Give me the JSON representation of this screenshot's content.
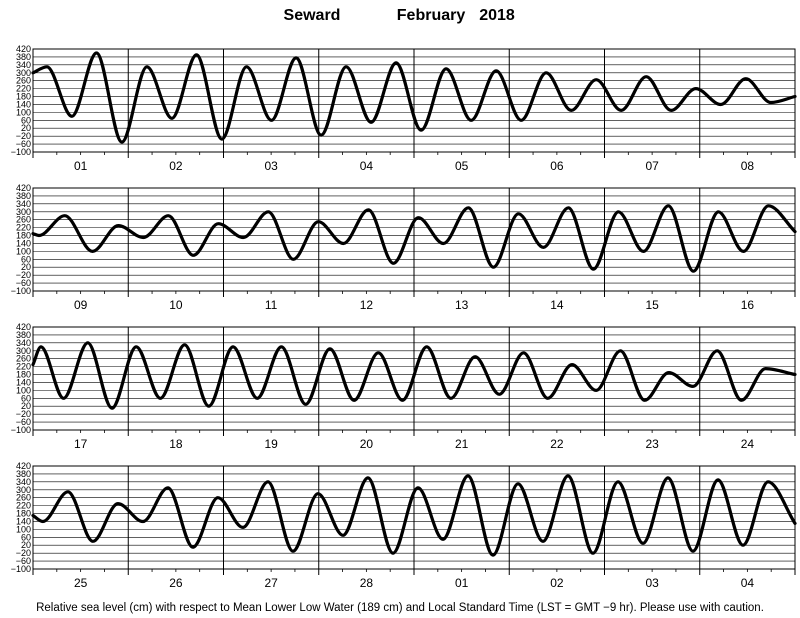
{
  "title": {
    "station": "Seward",
    "month": "February",
    "year": "2018"
  },
  "footer": "Relative sea level (cm) with respect to Mean Lower Low Water (189 cm) and Local Standard Time (LST = GMT −9 hr). Please use with caution.",
  "chart_data": {
    "type": "line",
    "title": "Seward February 2018",
    "ylim": [
      -100,
      420
    ],
    "y_ticks": [
      420,
      380,
      340,
      300,
      260,
      220,
      180,
      140,
      100,
      60,
      20,
      -20,
      -60,
      -100
    ],
    "grid": true,
    "panels": [
      {
        "days": [
          "01",
          "02",
          "03",
          "04",
          "05",
          "06",
          "07",
          "08"
        ],
        "series": [
          {
            "x": [
              0,
              3.5,
              9.8,
              16.0,
              22.4,
              28.7,
              35.0,
              41.2,
              47.6,
              53.8,
              60.1,
              66.3,
              72.6,
              78.9,
              85.2,
              91.5,
              97.8,
              104.1,
              110.4,
              116.7,
              123.0,
              129.3,
              135.6,
              141.9,
              148.2,
              154.5,
              160.8,
              167.0,
              173.3,
              179.6,
              185.9,
              192.0
            ],
            "y": [
              300,
              330,
              80,
              400,
              -50,
              330,
              70,
              390,
              -35,
              330,
              60,
              375,
              -15,
              330,
              50,
              350,
              10,
              320,
              60,
              310,
              60,
              300,
              110,
              265,
              110,
              280,
              110,
              220,
              140,
              270,
              150,
              180
            ]
          }
        ]
      },
      {
        "days": [
          "09",
          "10",
          "11",
          "12",
          "13",
          "14",
          "15",
          "16"
        ],
        "series": [
          {
            "x": [
              0,
              1.5,
              8.0,
              15.0,
              21.5,
              27.8,
              34.1,
              40.4,
              46.7,
              53.0,
              59.3,
              65.6,
              71.9,
              78.2,
              84.5,
              90.8,
              97.1,
              103.4,
              109.7,
              116.0,
              122.3,
              128.6,
              134.9,
              141.2,
              147.5,
              153.8,
              160.1,
              166.4,
              172.7,
              179.0,
              185.3,
              192.0
            ],
            "y": [
              190,
              180,
              280,
              100,
              230,
              170,
              280,
              80,
              240,
              170,
              300,
              60,
              250,
              140,
              310,
              40,
              270,
              140,
              320,
              20,
              290,
              120,
              320,
              10,
              300,
              100,
              330,
              0,
              300,
              100,
              330,
              200
            ]
          }
        ]
      },
      {
        "days": [
          "17",
          "18",
          "19",
          "20",
          "21",
          "22",
          "23",
          "24"
        ],
        "series": [
          {
            "x": [
              0,
              2.0,
              7.7,
              13.8,
              19.9,
              26.0,
              32.1,
              38.2,
              44.3,
              50.4,
              56.5,
              62.6,
              68.7,
              74.8,
              80.9,
              87.0,
              93.1,
              99.2,
              105.3,
              111.4,
              117.5,
              123.6,
              129.7,
              135.8,
              141.9,
              148.0,
              154.1,
              160.2,
              166.3,
              172.4,
              178.5,
              184.6,
              192.0
            ],
            "y": [
              230,
              320,
              60,
              340,
              10,
              320,
              60,
              330,
              20,
              320,
              60,
              320,
              30,
              310,
              50,
              290,
              50,
              320,
              60,
              270,
              80,
              290,
              60,
              230,
              100,
              300,
              50,
              190,
              120,
              300,
              50,
              210,
              180
            ]
          }
        ]
      },
      {
        "days": [
          "25",
          "26",
          "27",
          "28",
          "01",
          "02",
          "03",
          "04"
        ],
        "series": [
          {
            "x": [
              0,
              2.5,
              8.8,
              15.1,
              21.4,
              27.7,
              34.0,
              40.3,
              46.6,
              52.9,
              59.2,
              65.5,
              71.8,
              78.1,
              84.4,
              90.7,
              97.0,
              103.3,
              109.6,
              115.9,
              122.2,
              128.5,
              134.8,
              141.1,
              147.4,
              153.7,
              160.0,
              166.3,
              172.6,
              178.9,
              185.2,
              192.0
            ],
            "y": [
              170,
              140,
              290,
              40,
              230,
              140,
              310,
              10,
              260,
              110,
              340,
              -10,
              280,
              70,
              360,
              -20,
              310,
              50,
              370,
              -30,
              330,
              40,
              370,
              -20,
              340,
              30,
              360,
              -10,
              350,
              20,
              340,
              130
            ]
          }
        ]
      }
    ]
  }
}
